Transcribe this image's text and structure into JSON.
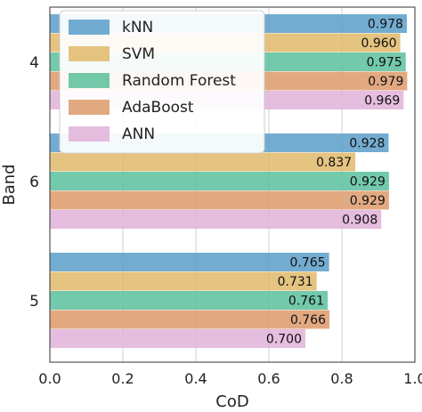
{
  "chart_data": {
    "type": "bar",
    "orientation": "horizontal",
    "categories": [
      "4",
      "6",
      "5"
    ],
    "series": [
      {
        "name": "kNN",
        "color": "#5a9ec9",
        "values": [
          0.978,
          0.928,
          0.765
        ],
        "labels": [
          "0.978",
          "0.928",
          "0.765"
        ]
      },
      {
        "name": "SVM",
        "color": "#e0b86a",
        "values": [
          0.96,
          0.837,
          0.731
        ],
        "labels": [
          "0.960",
          "0.837",
          "0.731"
        ]
      },
      {
        "name": "Random Forest",
        "color": "#5bbf9c",
        "values": [
          0.975,
          0.929,
          0.761
        ],
        "labels": [
          "0.975",
          "0.929",
          "0.761"
        ]
      },
      {
        "name": "AdaBoost",
        "color": "#dd9a6b",
        "values": [
          0.979,
          0.929,
          0.766
        ],
        "labels": [
          "0.979",
          "0.929",
          "0.766"
        ]
      },
      {
        "name": "ANN",
        "color": "#e0b1d8",
        "values": [
          0.969,
          0.908,
          0.7
        ],
        "labels": [
          "0.969",
          "0.908",
          "0.700"
        ]
      }
    ],
    "xlabel": "CoD",
    "ylabel": "Band",
    "xlim": [
      0.0,
      1.0
    ],
    "xticks": [
      0.0,
      0.2,
      0.4,
      0.6,
      0.8,
      1.0
    ],
    "xtick_labels": [
      "0.0",
      "0.2",
      "0.4",
      "0.6",
      "0.8",
      "1.0"
    ],
    "grid": "vertical",
    "legend": "top-left"
  }
}
